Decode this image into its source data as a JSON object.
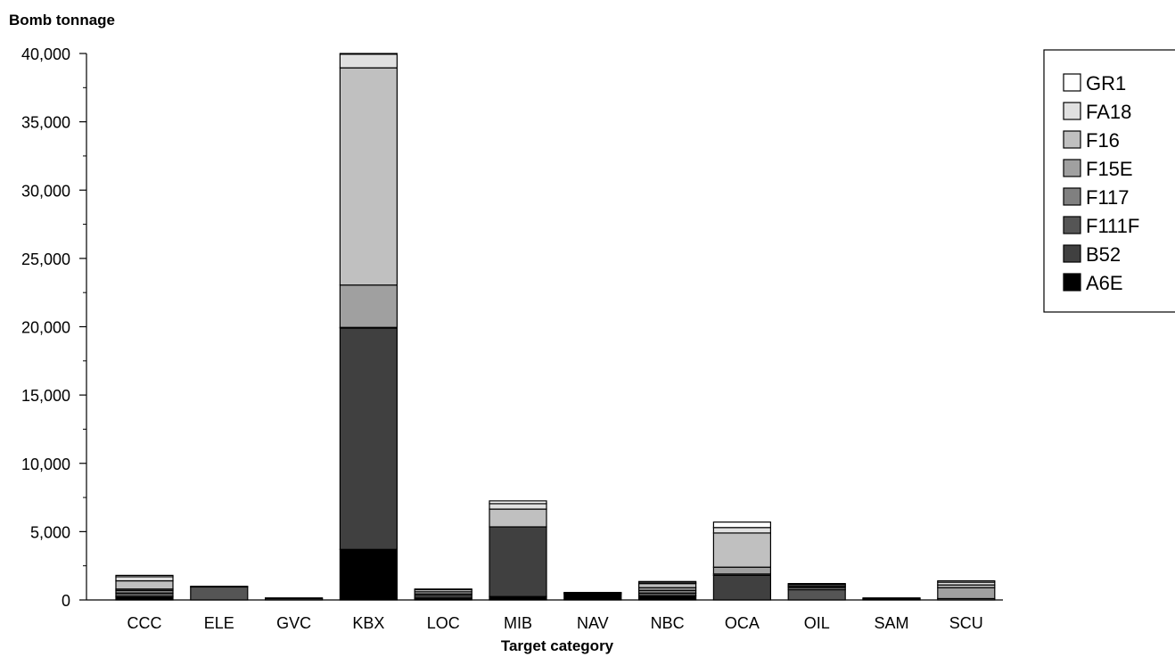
{
  "chart_data": {
    "type": "bar",
    "stacked": true,
    "title": "",
    "ylabel": "Bomb tonnage",
    "xlabel": "Target category",
    "ylim": [
      0,
      40000
    ],
    "yticks": [
      0,
      5000,
      10000,
      15000,
      20000,
      25000,
      30000,
      35000,
      40000
    ],
    "ytick_labels": [
      "0",
      "5,000",
      "10,000",
      "15,000",
      "20,000",
      "25,000",
      "30,000",
      "35,000",
      "40,000"
    ],
    "legend_position": "top-right",
    "categories": [
      "CCC",
      "ELE",
      "GVC",
      "KBX",
      "LOC",
      "MIB",
      "NAV",
      "NBC",
      "OCA",
      "OIL",
      "SAM",
      "SCU"
    ],
    "series": [
      {
        "name": "A6E",
        "color": "#000000",
        "values": [
          250,
          0,
          0,
          3700,
          100,
          250,
          450,
          300,
          0,
          0,
          50,
          0
        ]
      },
      {
        "name": "B52",
        "color": "#404040",
        "values": [
          0,
          0,
          0,
          16200,
          0,
          5100,
          0,
          0,
          1800,
          0,
          0,
          0
        ]
      },
      {
        "name": "F111F",
        "color": "#555555",
        "values": [
          250,
          950,
          100,
          50,
          100,
          0,
          0,
          200,
          100,
          750,
          50,
          0
        ]
      },
      {
        "name": "F117",
        "color": "#808080",
        "values": [
          200,
          0,
          0,
          0,
          150,
          0,
          0,
          200,
          0,
          150,
          0,
          100
        ]
      },
      {
        "name": "F15E",
        "color": "#a0a0a0",
        "values": [
          100,
          0,
          0,
          3100,
          100,
          0,
          0,
          200,
          500,
          100,
          0,
          800
        ]
      },
      {
        "name": "F16",
        "color": "#c0c0c0",
        "values": [
          600,
          0,
          0,
          15900,
          150,
          1300,
          0,
          300,
          2500,
          50,
          0,
          200
        ]
      },
      {
        "name": "FA18",
        "color": "#e0e0e0",
        "values": [
          300,
          50,
          50,
          1000,
          150,
          400,
          50,
          100,
          400,
          100,
          50,
          200
        ]
      },
      {
        "name": "GR1",
        "color": "#ffffff",
        "values": [
          100,
          0,
          0,
          50,
          50,
          200,
          50,
          50,
          400,
          50,
          0,
          100
        ]
      }
    ]
  }
}
